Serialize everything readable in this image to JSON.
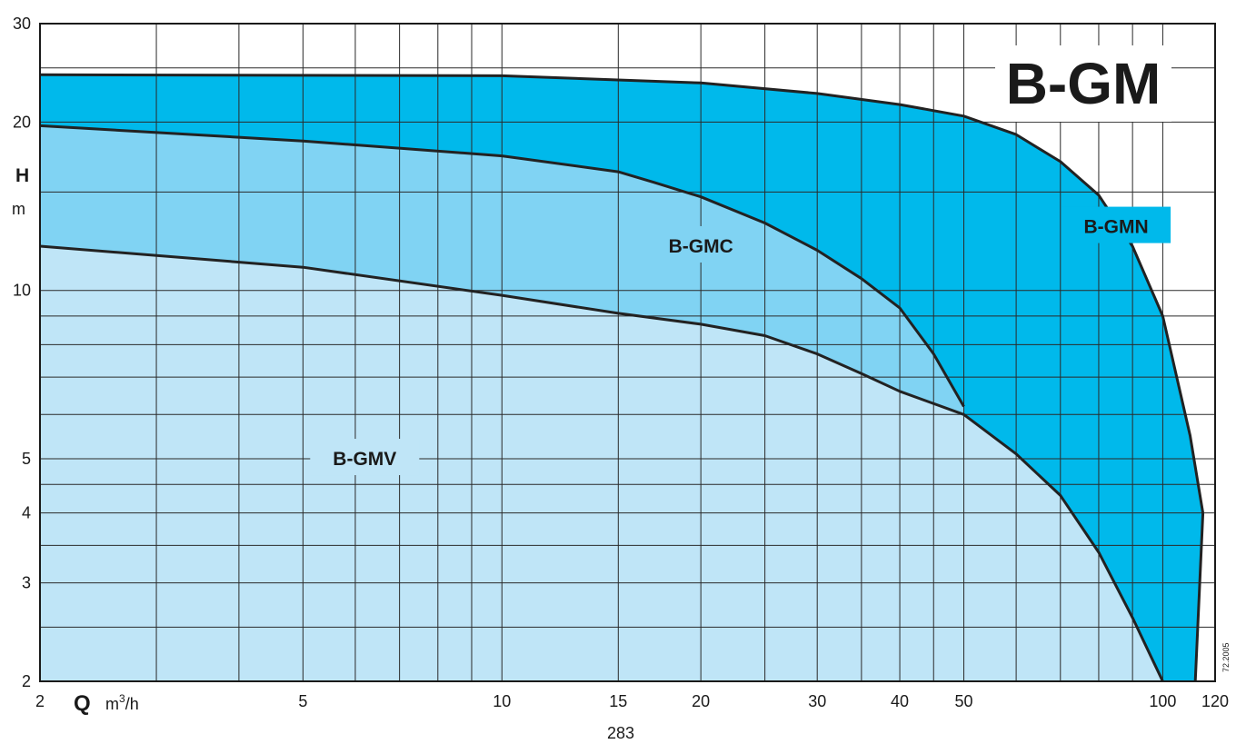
{
  "page_number": "283",
  "code": "72.2005",
  "chart_data": {
    "type": "area",
    "title": "B-GM",
    "xlabel": "Q",
    "xlabel_unit_base": "m",
    "xlabel_unit_sup": "3",
    "xlabel_unit_tail": "/h",
    "ylabel": "H",
    "ylabel_unit": "m",
    "x_scale": "log",
    "y_scale": "log",
    "xlim": [
      2,
      120
    ],
    "ylim": [
      2,
      30
    ],
    "x_ticks": [
      2,
      5,
      10,
      15,
      20,
      30,
      40,
      50,
      100,
      120
    ],
    "y_ticks": [
      2,
      3,
      4,
      5,
      10,
      20,
      30
    ],
    "x_grid": [
      2,
      3,
      4,
      5,
      6,
      7,
      8,
      9,
      10,
      15,
      20,
      25,
      30,
      35,
      40,
      45,
      50,
      60,
      70,
      80,
      90,
      100,
      120
    ],
    "y_grid": [
      2,
      2.5,
      3,
      3.5,
      4,
      4.5,
      5,
      6,
      7,
      8,
      9,
      10,
      15,
      20,
      25,
      30
    ],
    "grid": true,
    "series": [
      {
        "name": "B-GMN",
        "color": "#00b9eb",
        "label_at": [
          85,
          13
        ],
        "boundary": [
          [
            2,
            24.3
          ],
          [
            10,
            24.2
          ],
          [
            20,
            23.5
          ],
          [
            30,
            22.5
          ],
          [
            40,
            21.5
          ],
          [
            50,
            20.5
          ],
          [
            60,
            19
          ],
          [
            70,
            17
          ],
          [
            80,
            14.8
          ],
          [
            90,
            12
          ],
          [
            100,
            9
          ],
          [
            110,
            5.5
          ],
          [
            115,
            4
          ],
          [
            112,
            2
          ]
        ]
      },
      {
        "name": "B-GMC",
        "color": "#80d3f3",
        "label_at": [
          20,
          12
        ],
        "boundary": [
          [
            2,
            19.7
          ],
          [
            5,
            18.5
          ],
          [
            10,
            17.4
          ],
          [
            15,
            16.3
          ],
          [
            17,
            15.6
          ],
          [
            20,
            14.7
          ],
          [
            25,
            13.2
          ],
          [
            30,
            11.8
          ],
          [
            35,
            10.5
          ],
          [
            40,
            9.3
          ],
          [
            45,
            7.7
          ],
          [
            50,
            6.2
          ]
        ]
      },
      {
        "name": "B-GMV",
        "color": "#bfe5f7",
        "label_at": [
          6.2,
          5
        ],
        "boundary": [
          [
            2,
            12
          ],
          [
            5,
            11
          ],
          [
            10,
            9.8
          ],
          [
            15,
            9.1
          ],
          [
            20,
            8.7
          ],
          [
            25,
            8.3
          ],
          [
            30,
            7.7
          ],
          [
            35,
            7.1
          ],
          [
            40,
            6.6
          ],
          [
            50,
            6
          ],
          [
            60,
            5.1
          ],
          [
            70,
            4.3
          ],
          [
            80,
            3.4
          ],
          [
            90,
            2.6
          ],
          [
            100,
            2
          ]
        ]
      }
    ]
  }
}
